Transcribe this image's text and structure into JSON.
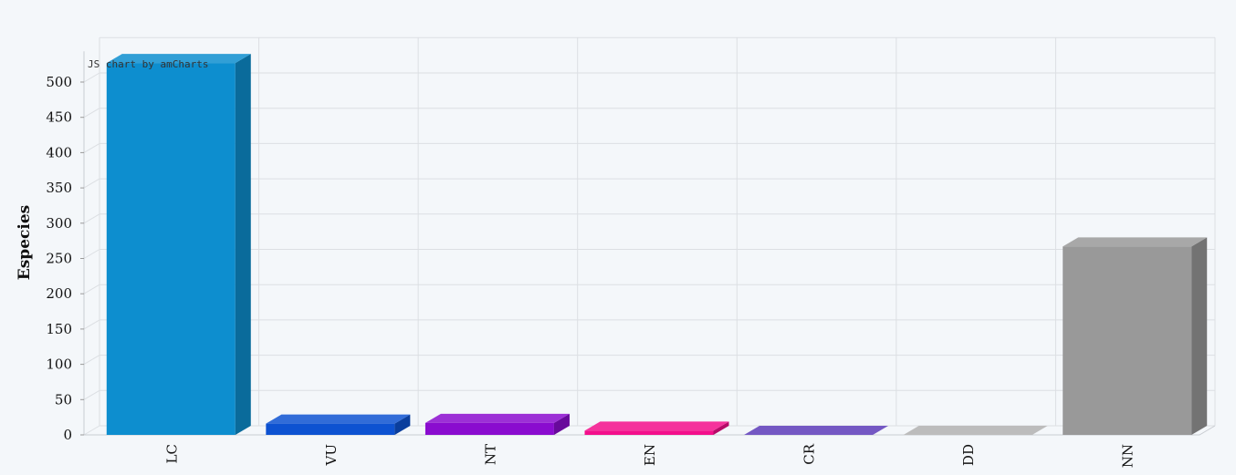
{
  "chart_data": {
    "type": "bar",
    "ylabel": "Especies",
    "xlabel": "",
    "categories": [
      "LC",
      "VU",
      "NT",
      "EN",
      "CR",
      "DD",
      "NN"
    ],
    "values": [
      527,
      16,
      17,
      6,
      0,
      0,
      267
    ],
    "colors": [
      "#0d8ecf",
      "#0d52d1",
      "#8a0ccf",
      "#f30f8b",
      "#5b3bb8",
      "#b0b0b0",
      "#999999"
    ],
    "ylim": [
      0,
      550
    ],
    "yticks": [
      0,
      50,
      100,
      150,
      200,
      250,
      300,
      350,
      400,
      450,
      500
    ],
    "grid": true,
    "style": "3d-column",
    "credit": "JS chart by amCharts"
  }
}
